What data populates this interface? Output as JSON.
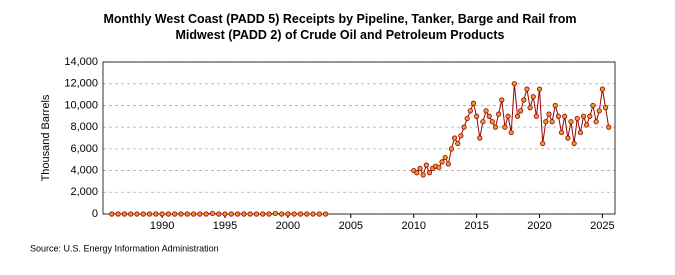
{
  "chart_data": {
    "type": "line",
    "title": "Monthly West Coast (PADD 5) Receipts by Pipeline, Tanker, Barge and Rail from Midwest (PADD 2) of Crude Oil and Petroleum Products",
    "y_label": "Thousand Barrels",
    "source": "Source: U.S. Energy Information Administration",
    "x": [
      1986,
      1986.5,
      1987,
      1987.5,
      1988,
      1988.5,
      1989,
      1989.5,
      1990,
      1990.5,
      1991,
      1991.5,
      1992,
      1992.5,
      1993,
      1993.5,
      1994,
      1994.5,
      1995,
      1995.5,
      1996,
      1996.5,
      1997,
      1997.5,
      1998,
      1998.5,
      1999,
      1999.5,
      2000,
      2000.5,
      2001,
      2001.5,
      2002,
      2002.5,
      2003,
      2006,
      2010,
      2010.25,
      2010.5,
      2010.75,
      2011,
      2011.25,
      2011.5,
      2011.75,
      2012,
      2012.25,
      2012.5,
      2012.75,
      2013,
      2013.25,
      2013.5,
      2013.75,
      2014,
      2014.25,
      2014.5,
      2014.75,
      2015,
      2015.25,
      2015.5,
      2015.75,
      2016,
      2016.25,
      2016.5,
      2016.75,
      2017,
      2017.25,
      2017.5,
      2017.75,
      2018,
      2018.25,
      2018.5,
      2018.75,
      2019,
      2019.25,
      2019.5,
      2019.75,
      2020,
      2020.25,
      2020.5,
      2020.75,
      2021,
      2021.25,
      2021.5,
      2021.75,
      2022,
      2022.25,
      2022.5,
      2022.75,
      2023,
      2023.25,
      2023.5,
      2023.75,
      2024,
      2024.25,
      2024.5,
      2024.75,
      2025,
      2025.25,
      2025.5
    ],
    "series": [
      {
        "name": "Receipts",
        "color": "#990000",
        "marker_fill": "#e89a2c",
        "values": [
          0,
          0,
          0,
          0,
          0,
          0,
          0,
          0,
          0,
          0,
          0,
          0,
          0,
          0,
          0,
          0,
          50,
          0,
          0,
          0,
          0,
          0,
          0,
          0,
          0,
          0,
          50,
          0,
          0,
          0,
          0,
          0,
          0,
          0,
          0,
          null,
          4000,
          3800,
          4200,
          3600,
          4500,
          3800,
          4200,
          4400,
          4300,
          4800,
          5200,
          4600,
          6000,
          7000,
          6500,
          7200,
          8000,
          8800,
          9500,
          10200,
          9000,
          7000,
          8500,
          9500,
          9000,
          8500,
          8000,
          9200,
          10500,
          8000,
          9000,
          7500,
          12000,
          9000,
          9500,
          10500,
          11500,
          9800,
          10800,
          9000,
          11500,
          6500,
          8500,
          9200,
          8500,
          10000,
          9000,
          7500,
          9000,
          7000,
          8500,
          6500,
          8800,
          7500,
          9000,
          8200,
          9000,
          10000,
          8500,
          9500,
          11500,
          9800,
          8000
        ]
      }
    ],
    "xlim": [
      1985.3,
      2026
    ],
    "xticks": [
      1990,
      1995,
      2000,
      2005,
      2010,
      2015,
      2020,
      2025
    ],
    "ylim": [
      0,
      14000
    ],
    "yticks": [
      0,
      {
        "value": 2000,
        "label": "2,000"
      },
      {
        "value": 4000,
        "label": "4,000"
      },
      {
        "value": 6000,
        "label": "6,000"
      },
      {
        "value": 8000,
        "label": "8,000"
      },
      {
        "value": 10000,
        "label": "10,000"
      },
      {
        "value": 12000,
        "label": "12,000"
      },
      {
        "value": 14000,
        "label": "14,000"
      }
    ],
    "grid": true
  }
}
